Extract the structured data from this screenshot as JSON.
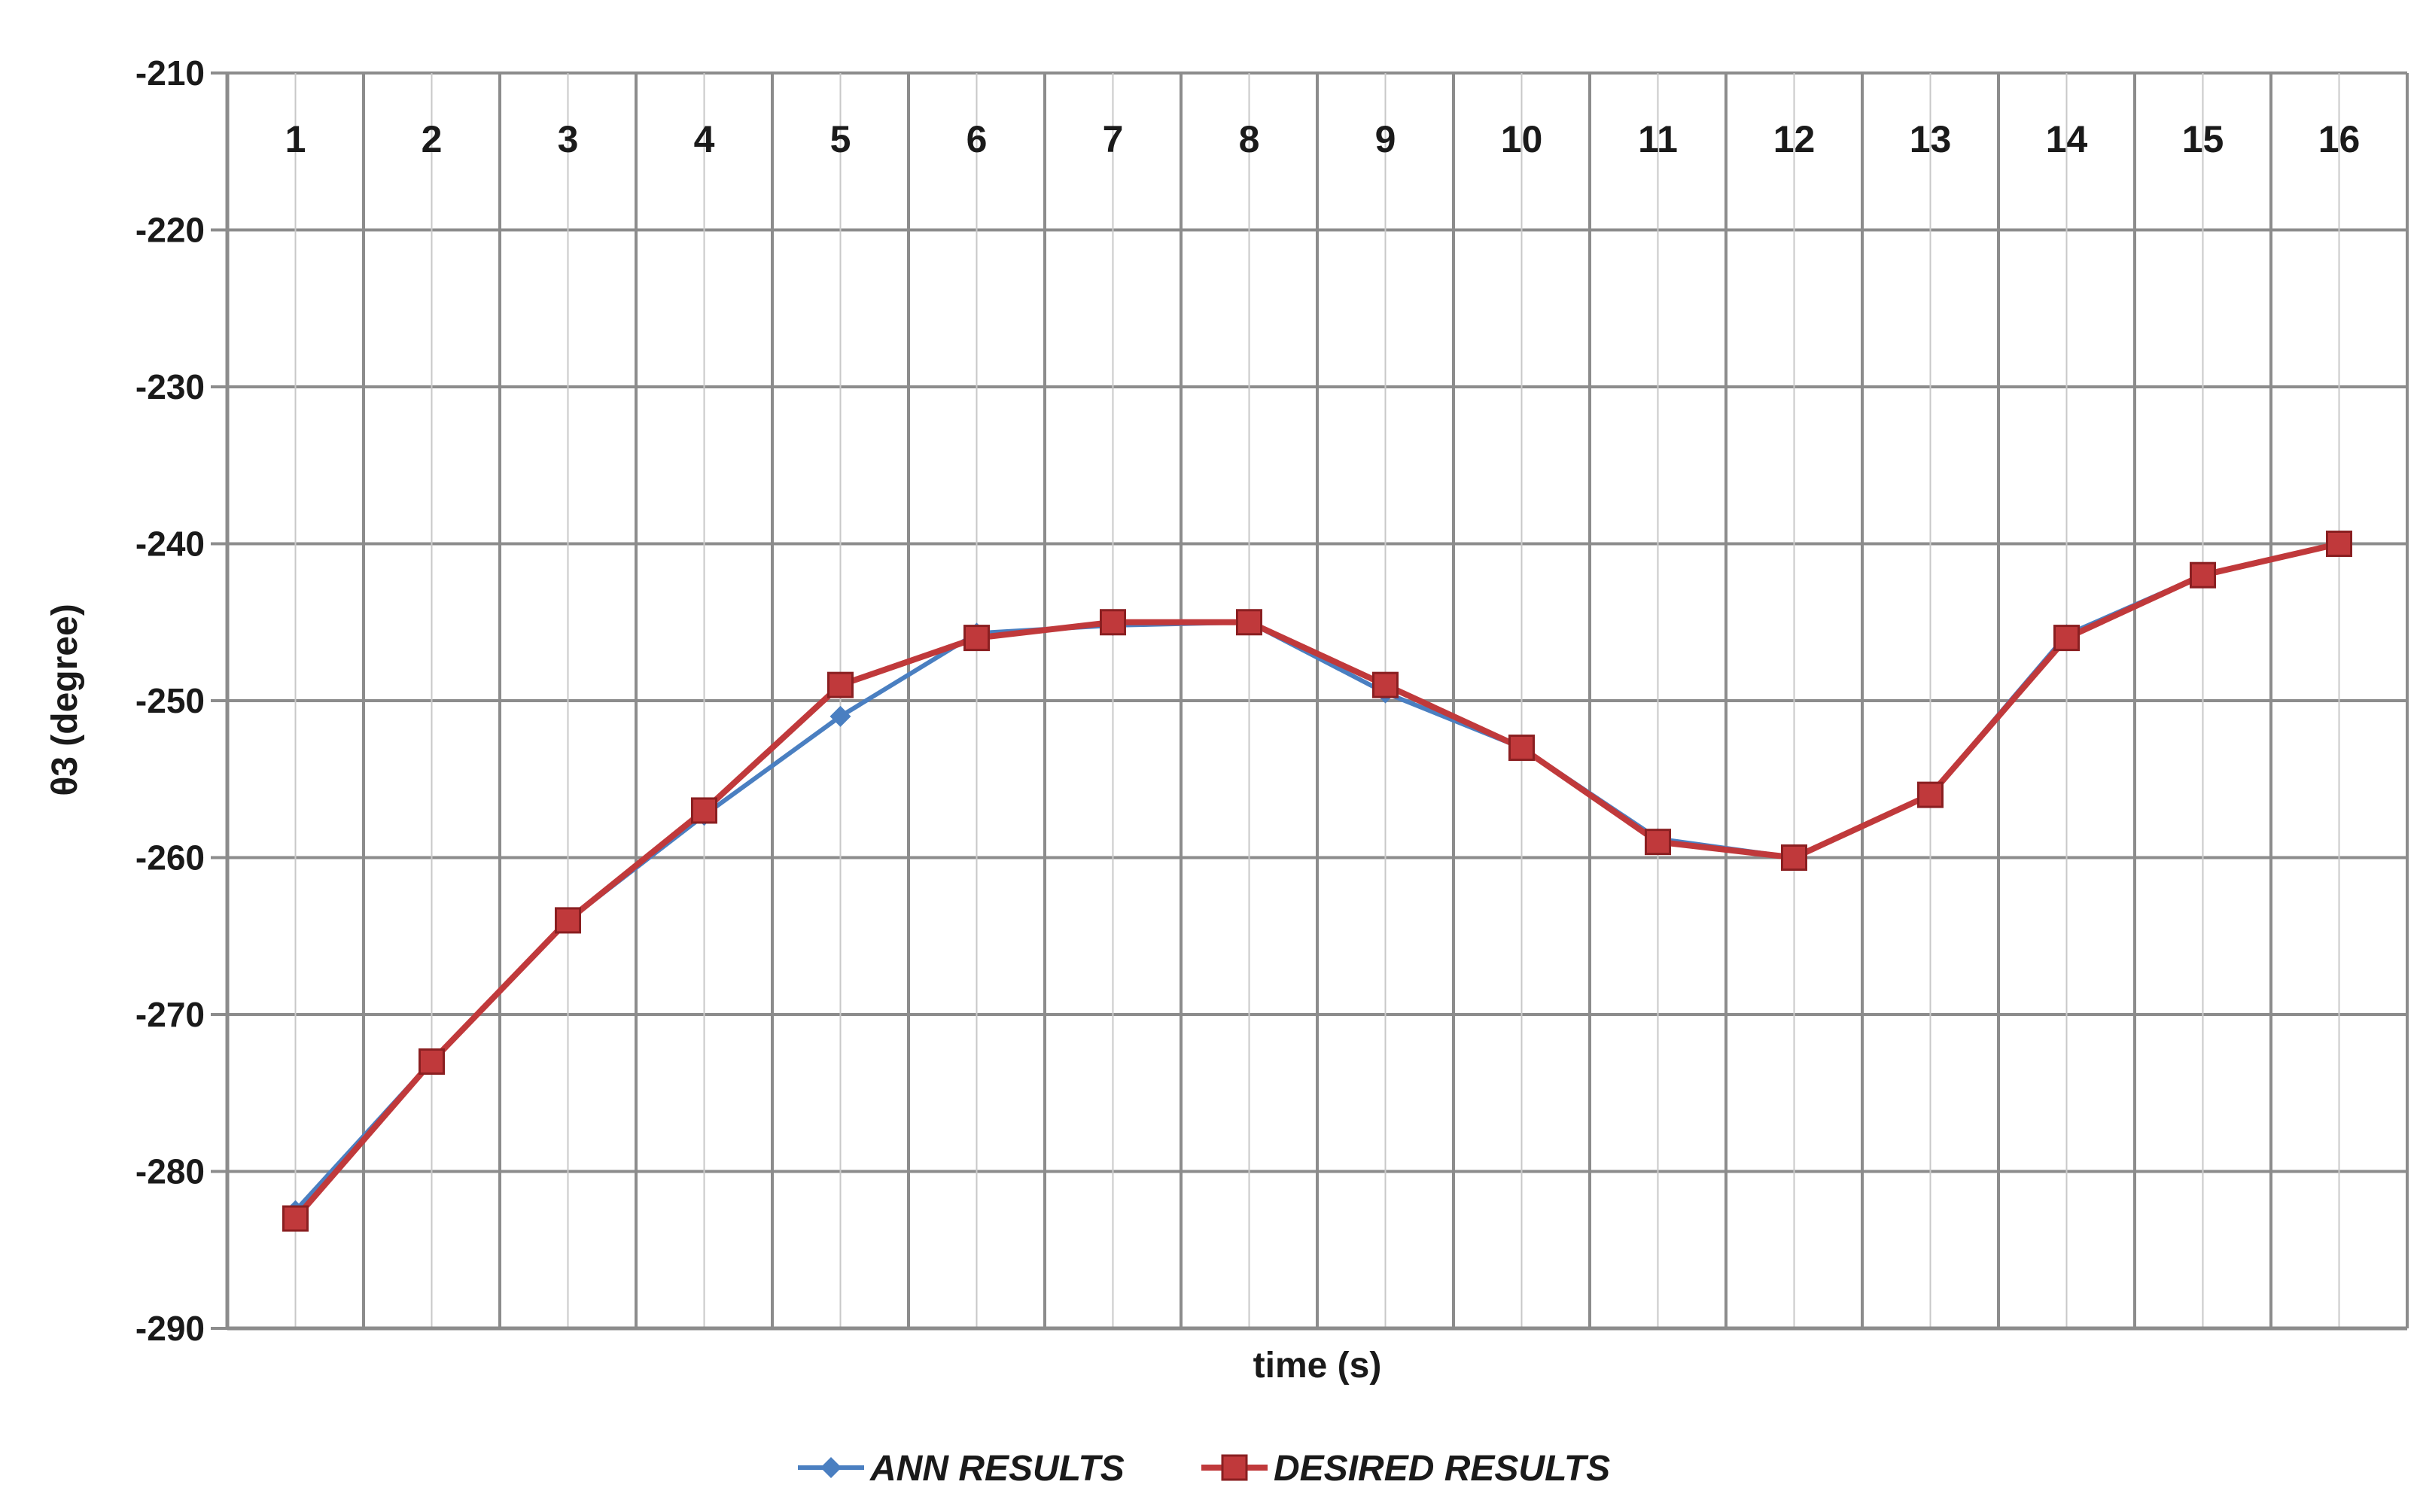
{
  "chart_data": {
    "type": "line",
    "title": "",
    "xlabel": "time (s)",
    "ylabel": "θ3 (degree)",
    "ylim": [
      -290,
      -210
    ],
    "y_ticks": [
      "-210",
      "-220",
      "-230",
      "-240",
      "-250",
      "-260",
      "-270",
      "-280",
      "-290"
    ],
    "categories": [
      "1",
      "2",
      "3",
      "4",
      "5",
      "6",
      "7",
      "8",
      "9",
      "10",
      "11",
      "12",
      "13",
      "14",
      "15",
      "16"
    ],
    "x_tick_position": "top",
    "grid": true,
    "legend_position": "bottom",
    "series": [
      {
        "name": "ANN RESULTS",
        "color": "#4a7fc1",
        "marker": "diamond",
        "values": [
          -282.5,
          -273,
          -264,
          -257.3,
          -251,
          -245.7,
          -245.2,
          -245,
          -249.5,
          -253,
          -258.8,
          -260,
          -256,
          -245.8,
          -242,
          -240
        ]
      },
      {
        "name": "DESIRED RESULTS",
        "color": "#c0393b",
        "marker": "square",
        "values": [
          -283,
          -273,
          -264,
          -257,
          -249,
          -246,
          -245,
          -245,
          -249,
          -253,
          -259,
          -260,
          -256,
          -246,
          -242,
          -240
        ]
      }
    ]
  }
}
